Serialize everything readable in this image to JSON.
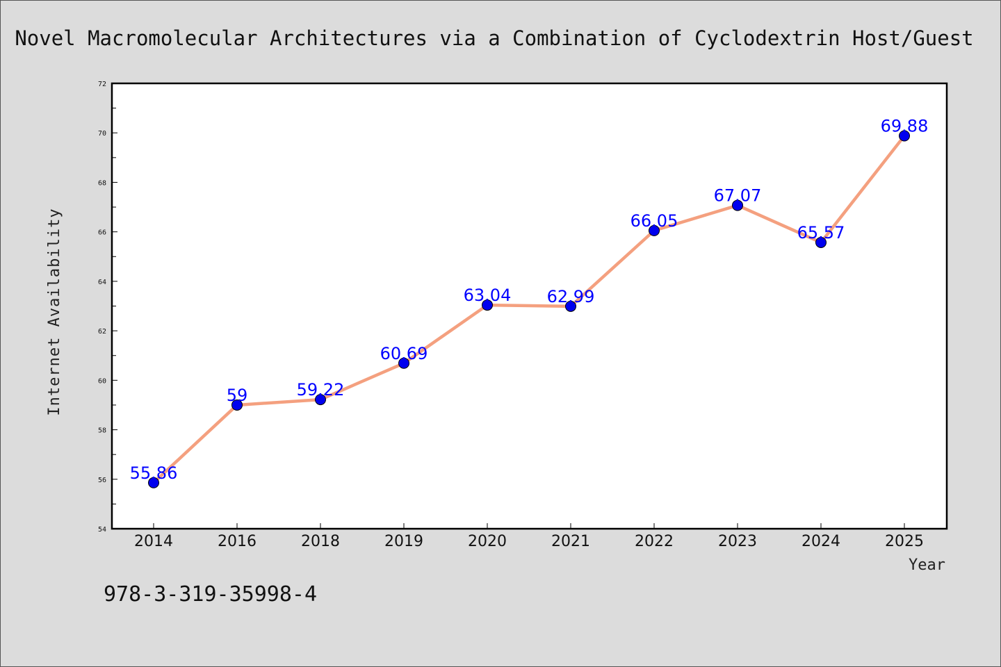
{
  "chart_data": {
    "type": "line",
    "title": "Novel Macromolecular Architectures via a Combination of Cyclodextrin Host/Guest",
    "xlabel": "Year",
    "ylabel": "Internet Availability",
    "categories": [
      "2014",
      "2016",
      "2018",
      "2019",
      "2020",
      "2021",
      "2022",
      "2023",
      "2024",
      "2025"
    ],
    "series": [
      {
        "values": [
          55.86,
          59,
          59.22,
          60.69,
          63.04,
          62.99,
          66.05,
          67.07,
          65.57,
          69.88
        ]
      }
    ],
    "data_labels": [
      "55.86",
      "59",
      "59.22",
      "60.69",
      "63.04",
      "62.99",
      "66.05",
      "67.07",
      "65.57",
      "69.88"
    ],
    "ylim": [
      54,
      72
    ],
    "yticks": [
      "54",
      "56",
      "58",
      "60",
      "62",
      "64",
      "66",
      "68",
      "70",
      "72"
    ],
    "grid": false,
    "legend": "none",
    "line_color": "#f4a07f",
    "marker_color": "#0000ee",
    "label_color": "#0000ff",
    "background_color": "#dcdcdc",
    "plot_background_color": "#ffffff"
  },
  "annotation": "978-3-319-35998-4"
}
